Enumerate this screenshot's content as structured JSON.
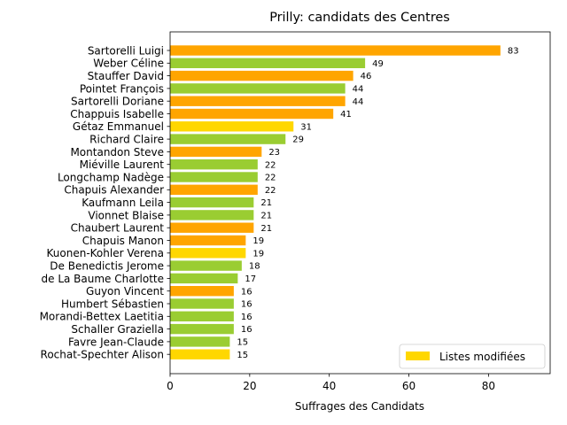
{
  "chart_data": {
    "type": "bar",
    "orientation": "horizontal",
    "title": "Prilly: candidats des Centres",
    "xlabel": "Suffrages des Candidats",
    "ylabel": "",
    "xlim": [
      0,
      95.5
    ],
    "xticks": [
      0,
      20,
      40,
      60,
      80
    ],
    "grid": false,
    "legend": {
      "placement": "lower-right",
      "entries": [
        {
          "label": "Listes modifiées",
          "color": "#ffd700"
        }
      ]
    },
    "colors": {
      "orange": "#ffa500",
      "green": "#9acd32",
      "gold": "#ffd700"
    },
    "categories": [
      "Sartorelli Luigi",
      "Weber Céline",
      "Stauffer David",
      "Pointet François",
      "Sartorelli Doriane",
      "Chappuis Isabelle",
      "Gétaz Emmanuel",
      "Richard Claire",
      "Montandon Steve",
      "Miéville Laurent",
      "Longchamp Nadège",
      "Chapuis Alexander",
      "Kaufmann Leila",
      "Vionnet Blaise",
      "Chaubert Laurent",
      "Chapuis Manon",
      "Kuonen-Kohler Verena",
      "De Benedictis Jerome",
      "de La Baume Charlotte",
      "Guyon Vincent",
      "Humbert Sébastien",
      "Morandi-Bettex Laetitia",
      "Schaller Graziella",
      "Favre Jean-Claude",
      "Rochat-Spechter Alison"
    ],
    "values": [
      83,
      49,
      46,
      44,
      44,
      41,
      31,
      29,
      23,
      22,
      22,
      22,
      21,
      21,
      21,
      19,
      19,
      18,
      17,
      16,
      16,
      16,
      16,
      15,
      15
    ],
    "bar_colors": [
      "orange",
      "green",
      "orange",
      "green",
      "orange",
      "orange",
      "gold",
      "green",
      "orange",
      "green",
      "green",
      "orange",
      "green",
      "green",
      "orange",
      "orange",
      "gold",
      "green",
      "green",
      "orange",
      "green",
      "green",
      "green",
      "green",
      "gold"
    ]
  }
}
